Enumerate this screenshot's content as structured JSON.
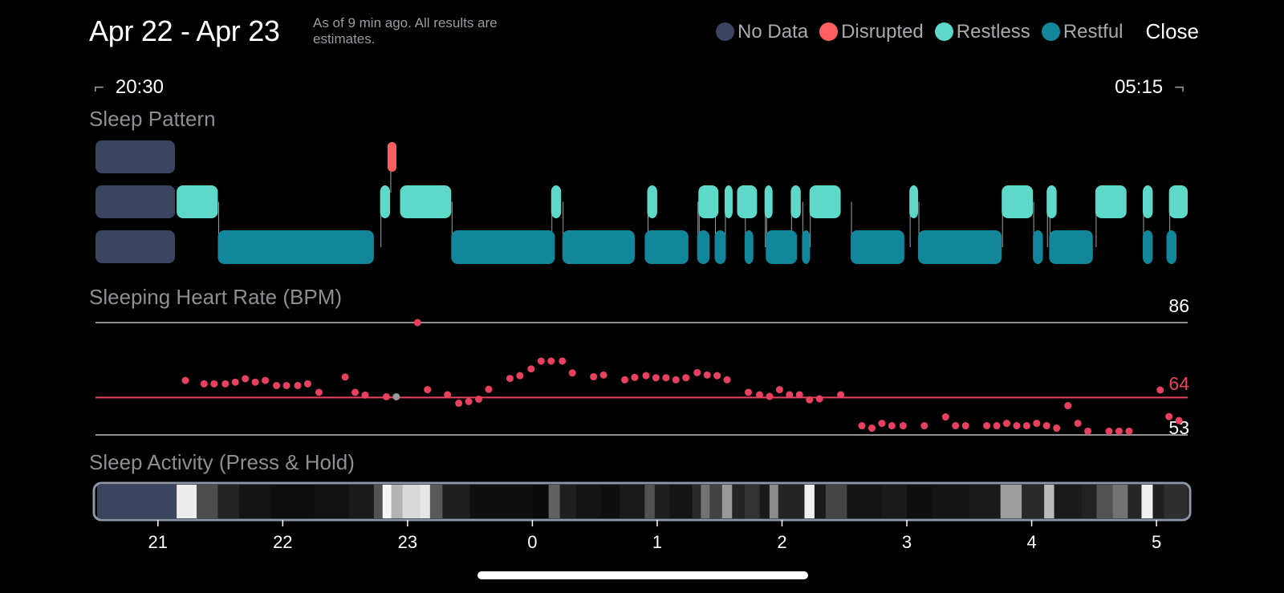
{
  "header": {
    "title": "Apr 22 - Apr 23",
    "subtitle": "As of 9 min ago. All results are estimates.",
    "close_label": "Close"
  },
  "legend": [
    {
      "label": "No Data",
      "color": "#3a4560"
    },
    {
      "label": "Disrupted",
      "color": "#ff5f5f"
    },
    {
      "label": "Restless",
      "color": "#5ed8c8"
    },
    {
      "label": "Restful",
      "color": "#12869a"
    }
  ],
  "range": {
    "start": "20:30",
    "end": "05:15"
  },
  "sections": {
    "pattern": "Sleep Pattern",
    "heart_rate": "Sleeping Heart Rate (BPM)",
    "activity": "Sleep Activity (Press & Hold)"
  },
  "chart_data": {
    "type": "scatter",
    "x_unit": "hours since 20:30",
    "xlim": [
      0,
      8.75
    ],
    "x_ticks": [
      {
        "x": 0.5,
        "label": "21"
      },
      {
        "x": 1.5,
        "label": "22"
      },
      {
        "x": 2.5,
        "label": "23"
      },
      {
        "x": 3.5,
        "label": "0"
      },
      {
        "x": 4.5,
        "label": "1"
      },
      {
        "x": 5.5,
        "label": "2"
      },
      {
        "x": 6.5,
        "label": "3"
      },
      {
        "x": 7.5,
        "label": "4"
      },
      {
        "x": 8.5,
        "label": "5"
      }
    ],
    "heart_rate": {
      "max": 86,
      "avg": 64,
      "min": 53,
      "max_label": "86",
      "avg_label": "64",
      "min_label": "53",
      "points": [
        [
          0.72,
          69
        ],
        [
          0.87,
          68
        ],
        [
          0.95,
          68
        ],
        [
          1.04,
          68
        ],
        [
          1.12,
          68.5
        ],
        [
          1.2,
          69.5
        ],
        [
          1.28,
          68.5
        ],
        [
          1.36,
          69
        ],
        [
          1.45,
          67.5
        ],
        [
          1.53,
          67.5
        ],
        [
          1.62,
          67.5
        ],
        [
          1.7,
          68
        ],
        [
          1.79,
          65.5
        ],
        [
          2.0,
          70
        ],
        [
          2.08,
          65.5
        ],
        [
          2.16,
          64.7
        ],
        [
          2.33,
          64.2
        ],
        [
          2.58,
          86
        ],
        [
          2.66,
          66.3
        ],
        [
          2.82,
          64.8
        ],
        [
          2.91,
          62.3
        ],
        [
          2.99,
          62.8
        ],
        [
          3.07,
          63.5
        ],
        [
          3.15,
          66.4
        ],
        [
          3.32,
          69.6
        ],
        [
          3.4,
          70.4
        ],
        [
          3.49,
          72.4
        ],
        [
          3.57,
          74.7
        ],
        [
          3.65,
          74.7
        ],
        [
          3.74,
          74.7
        ],
        [
          3.82,
          71.2
        ],
        [
          3.99,
          70.1
        ],
        [
          4.07,
          70.6
        ],
        [
          4.24,
          69.2
        ],
        [
          4.32,
          69.9
        ],
        [
          4.41,
          70.4
        ],
        [
          4.49,
          69.8
        ],
        [
          4.57,
          69.8
        ],
        [
          4.65,
          69.2
        ],
        [
          4.73,
          69.8
        ],
        [
          4.82,
          71.3
        ],
        [
          4.9,
          70.6
        ],
        [
          4.98,
          70.4
        ],
        [
          5.06,
          69.2
        ],
        [
          5.23,
          65.5
        ],
        [
          5.32,
          64.8
        ],
        [
          5.4,
          64.3
        ],
        [
          5.48,
          66.3
        ],
        [
          5.56,
          64.8
        ],
        [
          5.64,
          64.8
        ],
        [
          5.72,
          63.3
        ],
        [
          5.8,
          63.6
        ],
        [
          5.97,
          64.8
        ],
        [
          6.14,
          55.7
        ],
        [
          6.22,
          55
        ],
        [
          6.3,
          56.4
        ],
        [
          6.38,
          55.7
        ],
        [
          6.47,
          55.7
        ],
        [
          6.64,
          55.7
        ],
        [
          6.81,
          58.3
        ],
        [
          6.89,
          55.7
        ],
        [
          6.97,
          55.7
        ],
        [
          7.14,
          55.7
        ],
        [
          7.22,
          55.7
        ],
        [
          7.3,
          56.4
        ],
        [
          7.38,
          55.7
        ],
        [
          7.46,
          55.7
        ],
        [
          7.54,
          56.4
        ],
        [
          7.62,
          55.7
        ],
        [
          7.7,
          55
        ],
        [
          7.79,
          61.6
        ],
        [
          7.87,
          56.4
        ],
        [
          7.95,
          54.1
        ],
        [
          8.12,
          54.1
        ],
        [
          8.2,
          54.1
        ],
        [
          8.28,
          54.1
        ],
        [
          8.53,
          66.2
        ],
        [
          8.6,
          58.4
        ],
        [
          8.68,
          57.2
        ]
      ],
      "grey_point": [
        2.41,
        64.2
      ]
    },
    "sleep_pattern": {
      "no_data": [
        [
          0,
          0.65
        ]
      ],
      "disrupted": [
        [
          2.34,
          2.4
        ]
      ],
      "restless": [
        [
          0.65,
          0.98
        ],
        [
          2.28,
          2.36
        ],
        [
          2.44,
          2.85
        ],
        [
          3.65,
          3.73
        ],
        [
          4.42,
          4.5
        ],
        [
          4.83,
          4.99
        ],
        [
          5.04,
          5.1
        ],
        [
          5.14,
          5.3
        ],
        [
          5.36,
          5.42
        ],
        [
          5.57,
          5.65
        ],
        [
          5.72,
          5.97
        ],
        [
          6.52,
          6.59
        ],
        [
          7.26,
          7.51
        ],
        [
          7.62,
          7.7
        ],
        [
          8.01,
          8.26
        ],
        [
          8.39,
          8.47
        ],
        [
          8.6,
          8.75
        ]
      ],
      "restful": [
        [
          0.98,
          2.23
        ],
        [
          2.85,
          3.68
        ],
        [
          3.74,
          4.32
        ],
        [
          4.4,
          4.75
        ],
        [
          4.82,
          4.92
        ],
        [
          4.96,
          5.05
        ],
        [
          5.2,
          5.27
        ],
        [
          5.37,
          5.62
        ],
        [
          5.66,
          5.72
        ],
        [
          6.05,
          6.48
        ],
        [
          6.59,
          7.26
        ],
        [
          7.51,
          7.59
        ],
        [
          7.64,
          7.99
        ],
        [
          8.39,
          8.47
        ],
        [
          8.58,
          8.66
        ]
      ]
    },
    "activity": {
      "no_data": [
        0,
        0.65
      ],
      "segments": [
        [
          0.65,
          0.81,
          0.93
        ],
        [
          0.81,
          0.98,
          0.3
        ],
        [
          0.98,
          1.15,
          0.14
        ],
        [
          1.15,
          1.4,
          0.08
        ],
        [
          1.4,
          1.75,
          0.05
        ],
        [
          1.75,
          2.03,
          0.07
        ],
        [
          2.03,
          2.23,
          0.1
        ],
        [
          2.23,
          2.3,
          0.32
        ],
        [
          2.3,
          2.37,
          0.96
        ],
        [
          2.37,
          2.46,
          0.7
        ],
        [
          2.46,
          2.6,
          0.85
        ],
        [
          2.6,
          2.68,
          0.9
        ],
        [
          2.68,
          2.78,
          0.35
        ],
        [
          2.78,
          3.0,
          0.12
        ],
        [
          3.0,
          3.5,
          0.06
        ],
        [
          3.5,
          3.63,
          0.04
        ],
        [
          3.63,
          3.72,
          0.38
        ],
        [
          3.72,
          3.85,
          0.12
        ],
        [
          3.85,
          4.05,
          0.08
        ],
        [
          4.05,
          4.2,
          0.06
        ],
        [
          4.2,
          4.4,
          0.1
        ],
        [
          4.4,
          4.48,
          0.32
        ],
        [
          4.48,
          4.6,
          0.12
        ],
        [
          4.6,
          4.78,
          0.08
        ],
        [
          4.78,
          4.85,
          0.16
        ],
        [
          4.85,
          4.92,
          0.45
        ],
        [
          4.92,
          5.02,
          0.26
        ],
        [
          5.02,
          5.1,
          0.6
        ],
        [
          5.1,
          5.2,
          0.14
        ],
        [
          5.2,
          5.32,
          0.2
        ],
        [
          5.32,
          5.4,
          0.1
        ],
        [
          5.4,
          5.47,
          0.55
        ],
        [
          5.47,
          5.68,
          0.14
        ],
        [
          5.68,
          5.76,
          0.94
        ],
        [
          5.76,
          5.85,
          0.1
        ],
        [
          5.85,
          6.02,
          0.27
        ],
        [
          6.02,
          6.3,
          0.08
        ],
        [
          6.3,
          6.5,
          0.1
        ],
        [
          6.5,
          6.7,
          0.06
        ],
        [
          6.7,
          7.0,
          0.08
        ],
        [
          7.0,
          7.25,
          0.1
        ],
        [
          7.25,
          7.42,
          0.62
        ],
        [
          7.42,
          7.6,
          0.16
        ],
        [
          7.6,
          7.68,
          0.73
        ],
        [
          7.68,
          7.9,
          0.1
        ],
        [
          7.9,
          8.02,
          0.13
        ],
        [
          8.02,
          8.15,
          0.32
        ],
        [
          8.15,
          8.27,
          0.45
        ],
        [
          8.27,
          8.38,
          0.15
        ],
        [
          8.38,
          8.47,
          0.94
        ],
        [
          8.47,
          8.56,
          0.12
        ],
        [
          8.56,
          8.75,
          0.18
        ]
      ]
    }
  }
}
